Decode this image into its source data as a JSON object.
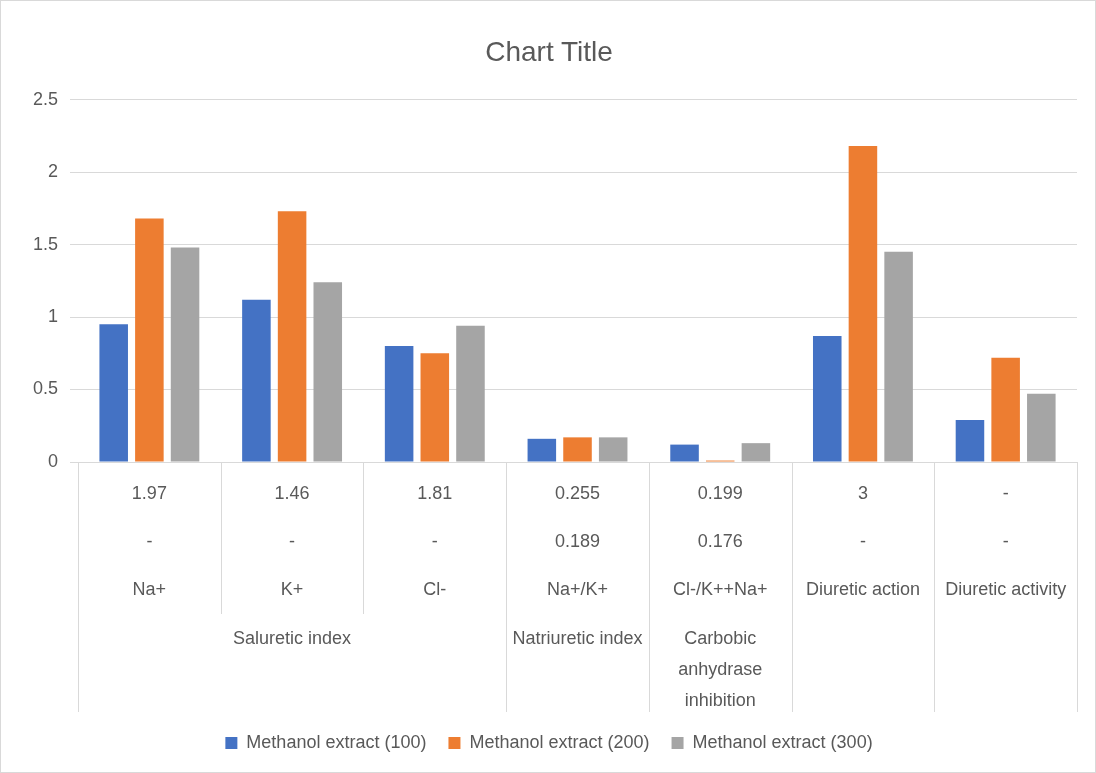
{
  "chart_data": {
    "type": "bar",
    "title": "Chart Title",
    "categories": [
      "1.97\n-\nNa+",
      "1.46\n-\nK+",
      "1.81\n-\nCl-",
      "0.255\n0.189\nNa+/K+\nNatriuretic index",
      "0.199\n0.176\nCl-/K++Na+\nCarbobic anhydrase inhibition",
      "3\n-\nDiuretic action",
      "-\n-\nDiuretic activity"
    ],
    "annotations": [
      "Saluretic index"
    ],
    "series": [
      {
        "name": "Methanol extract (100)",
        "color": "#4472c4",
        "values": [
          0.95,
          1.12,
          0.8,
          0.16,
          0.12,
          0.87,
          0.29
        ]
      },
      {
        "name": "Methanol extract (200)",
        "color": "#ed7d31",
        "values": [
          1.68,
          1.73,
          0.75,
          0.17,
          0.01,
          2.18,
          0.72
        ]
      },
      {
        "name": "Methanol extract (300)",
        "color": "#a5a5a5",
        "values": [
          1.48,
          1.24,
          0.94,
          0.17,
          0.13,
          1.45,
          0.47
        ]
      }
    ],
    "ylim": [
      0,
      2.5
    ],
    "yticks": [
      0,
      0.5,
      1,
      1.5,
      2,
      2.5
    ],
    "grid": "y",
    "legend": "bottom"
  }
}
